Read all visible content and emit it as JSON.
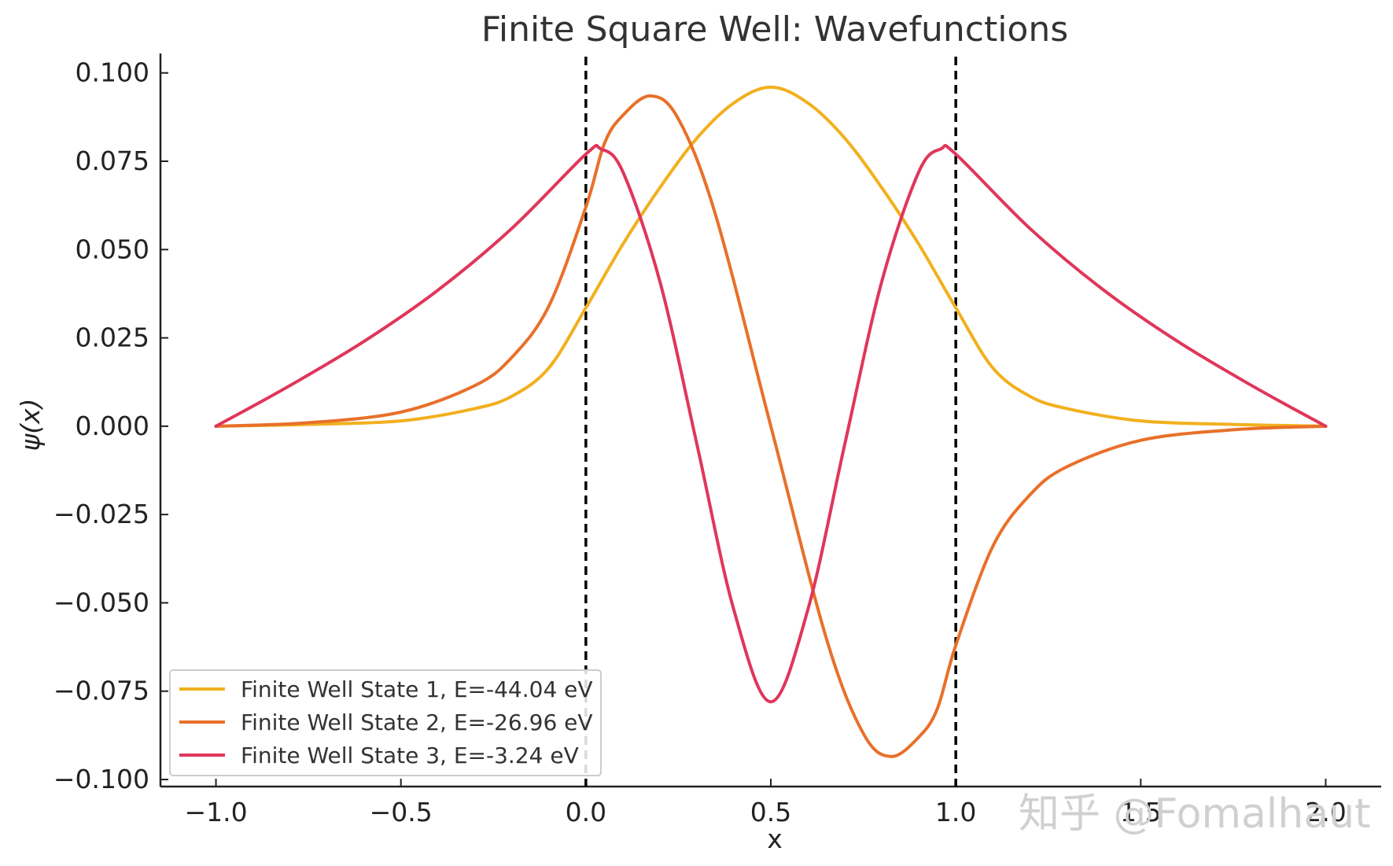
{
  "chart_data": {
    "type": "line",
    "title": "Finite Square Well: Wavefunctions",
    "xlabel": "x",
    "ylabel": "ψ(x)",
    "xlim": [
      -1.15,
      2.15
    ],
    "ylim": [
      -0.102,
      0.1055
    ],
    "x_ticks": [
      -1.0,
      -0.5,
      0.0,
      0.5,
      1.0,
      1.5,
      2.0
    ],
    "x_tick_labels": [
      "−1.0",
      "−0.5",
      "0.0",
      "0.5",
      "1.0",
      "1.5",
      "2.0"
    ],
    "y_ticks": [
      0.1,
      0.075,
      0.05,
      0.025,
      0.0,
      -0.025,
      -0.05,
      -0.075,
      -0.1
    ],
    "y_tick_labels": [
      "0.100",
      "0.075",
      "0.050",
      "0.025",
      "0.000",
      "−0.025",
      "−0.050",
      "−0.075",
      "−0.100"
    ],
    "grid": false,
    "legend_position": "bottom-left",
    "well_boundaries": [
      0.0,
      1.0
    ],
    "series": [
      {
        "name": "Finite Well State 1, E=-44.04 eV",
        "color": "#F2B01E",
        "x": [
          -1.0,
          -0.75,
          -0.5,
          -0.3,
          -0.2,
          -0.1,
          0.0,
          0.1,
          0.2,
          0.3,
          0.4,
          0.5,
          0.6,
          0.7,
          0.8,
          0.9,
          1.0,
          1.1,
          1.2,
          1.3,
          1.5,
          1.75,
          2.0
        ],
        "y": [
          0.0,
          0.0005,
          0.0015,
          0.005,
          0.0085,
          0.0165,
          0.0335,
          0.0515,
          0.0675,
          0.0815,
          0.0915,
          0.096,
          0.0915,
          0.0815,
          0.0675,
          0.0515,
          0.0335,
          0.0165,
          0.0085,
          0.005,
          0.0015,
          0.0005,
          0.0
        ]
      },
      {
        "name": "Finite Well State 2, E=-26.96 eV",
        "color": "#E8702A",
        "x": [
          -1.0,
          -0.75,
          -0.5,
          -0.3,
          -0.2,
          -0.1,
          0.0,
          0.05,
          0.1,
          0.175,
          0.25,
          0.35,
          0.5,
          0.65,
          0.75,
          0.825,
          0.9,
          0.95,
          1.0,
          1.1,
          1.2,
          1.3,
          1.5,
          1.75,
          2.0
        ],
        "y": [
          0.0,
          0.001,
          0.004,
          0.0115,
          0.0195,
          0.034,
          0.062,
          0.08,
          0.088,
          0.0935,
          0.087,
          0.06,
          0.0,
          -0.06,
          -0.087,
          -0.0935,
          -0.088,
          -0.08,
          -0.062,
          -0.034,
          -0.0195,
          -0.0115,
          -0.004,
          -0.001,
          0.0
        ]
      },
      {
        "name": "Finite Well State 3, E=-3.24 eV",
        "color": "#E0365A",
        "x": [
          -1.0,
          -0.8,
          -0.6,
          -0.4,
          -0.2,
          0.0,
          0.04,
          0.1,
          0.2,
          0.3,
          0.4,
          0.5,
          0.6,
          0.7,
          0.8,
          0.9,
          0.96,
          1.0,
          1.2,
          1.4,
          1.6,
          1.8,
          2.0
        ],
        "y": [
          0.0,
          0.0115,
          0.024,
          0.0385,
          0.056,
          0.077,
          0.0785,
          0.072,
          0.041,
          -0.005,
          -0.052,
          -0.078,
          -0.052,
          -0.005,
          0.041,
          0.072,
          0.0785,
          0.077,
          0.056,
          0.0385,
          0.024,
          0.0115,
          0.0
        ]
      }
    ]
  },
  "watermark": "知乎 @Fomalhaut"
}
